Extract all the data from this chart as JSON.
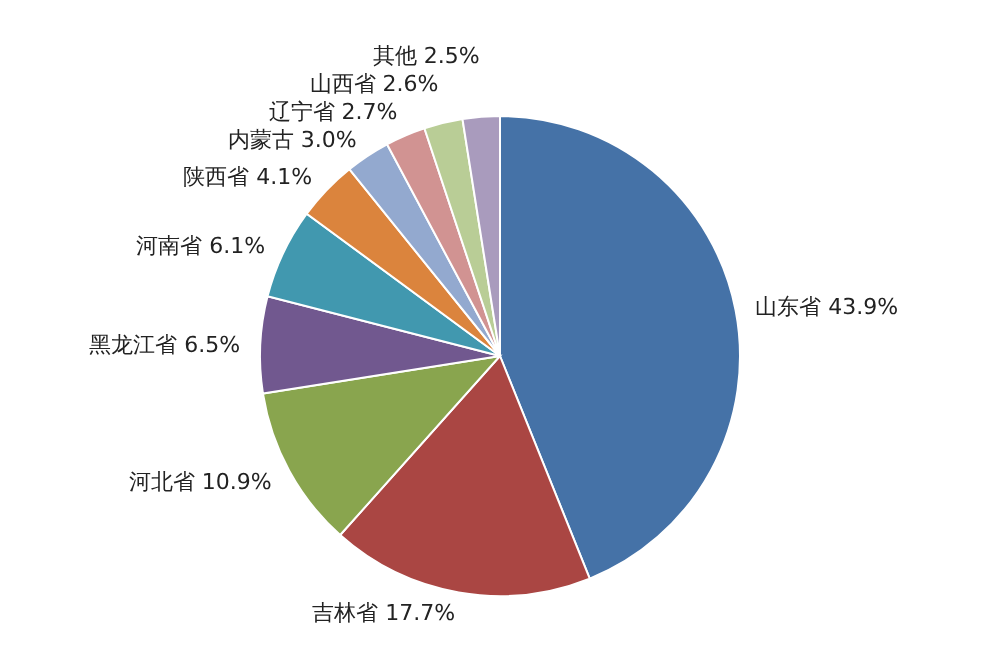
{
  "chart_data": {
    "type": "pie",
    "categories": [
      "山东省",
      "吉林省",
      "河北省",
      "黑龙江省",
      "河南省",
      "陕西省",
      "内蒙古",
      "辽宁省",
      "山西省",
      "其他"
    ],
    "values": [
      43.9,
      17.7,
      10.9,
      6.5,
      6.1,
      4.1,
      3.0,
      2.7,
      2.6,
      2.5
    ],
    "value_labels": [
      "43.9%",
      "17.7%",
      "10.9%",
      "6.5%",
      "6.1%",
      "4.1%",
      "3.0%",
      "2.7%",
      "2.6%",
      "2.5%"
    ],
    "colors": [
      "#4572a7",
      "#aa4643",
      "#89a54e",
      "#71588f",
      "#4198af",
      "#db843d",
      "#93a9cf",
      "#d19392",
      "#b9cd96",
      "#a99bbd"
    ]
  }
}
